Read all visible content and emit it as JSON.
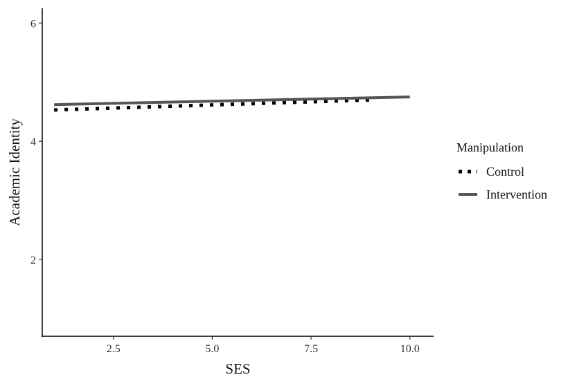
{
  "chart_data": {
    "type": "line",
    "title": "",
    "xlabel": "SES",
    "ylabel": "Academic Identity",
    "xlim": [
      0.7,
      10.6
    ],
    "ylim": [
      0.7,
      6.25
    ],
    "x_ticks": [
      2.5,
      5.0,
      7.5,
      10.0
    ],
    "x_tick_labels": [
      "2.5",
      "5.0",
      "7.5",
      "10.0"
    ],
    "y_ticks": [
      2,
      4,
      6
    ],
    "y_tick_labels": [
      "2",
      "4",
      "6"
    ],
    "grid": false,
    "legend": {
      "title": "Manipulation",
      "position": "right"
    },
    "series": [
      {
        "name": "Control",
        "style": "dotted",
        "color": "#000000",
        "x": [
          1,
          9
        ],
        "y": [
          4.53,
          4.7
        ]
      },
      {
        "name": "Intervention",
        "style": "solid",
        "color": "#555555",
        "x": [
          1,
          10
        ],
        "y": [
          4.62,
          4.75
        ]
      }
    ]
  }
}
